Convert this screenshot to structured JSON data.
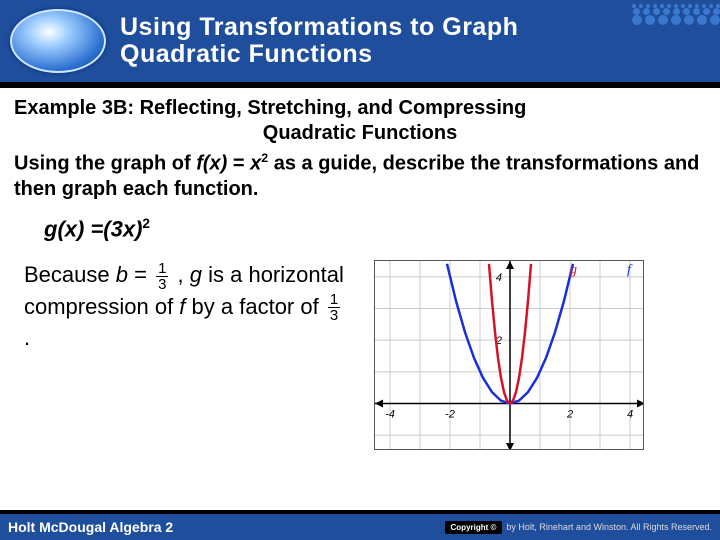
{
  "header": {
    "title_line1": "Using Transformations to Graph",
    "title_line2": "Quadratic Functions"
  },
  "example": {
    "title": "Example 3B: Reflecting, Stretching, and Compressing",
    "subtitle": "Quadratic Functions",
    "instruction_pre": "Using the graph of ",
    "fx": "f(x)",
    "eq": " = ",
    "x": "x",
    "exp": "2",
    "instruction_post": " as a guide, describe the transformations and then graph each function.",
    "gx": "g(x) =(3x)",
    "gx_exp": "2"
  },
  "explanation": {
    "p1a": "Because ",
    "b": "b",
    "eq": " = ",
    "frac1_num": "1",
    "frac1_den": "3",
    "p1b": " , ",
    "g": "g",
    "p1c": " is  a horizontal compression of ",
    "f": "f",
    "p1d": " by a factor of ",
    "frac2_num": "1",
    "frac2_den": "3",
    "p1e": " ."
  },
  "chart": {
    "type": "line",
    "xlim": [
      -4.5,
      4.5
    ],
    "ylim": [
      -1.5,
      4.5
    ],
    "xticks": [
      -4,
      -2,
      2,
      4
    ],
    "yticks": [
      2,
      4
    ],
    "grid_color": "#cccccc",
    "axis_color": "#000000",
    "background": "#ffffff",
    "series": [
      {
        "name": "f",
        "color": "#1a2fd8",
        "width": 2.5,
        "label_pos": [
          3.9,
          4.1
        ],
        "points": [
          [
            -2.1,
            4.41
          ],
          [
            -1.8,
            3.24
          ],
          [
            -1.5,
            2.25
          ],
          [
            -1.2,
            1.44
          ],
          [
            -0.9,
            0.81
          ],
          [
            -0.6,
            0.36
          ],
          [
            -0.3,
            0.09
          ],
          [
            0,
            0
          ],
          [
            0.3,
            0.09
          ],
          [
            0.6,
            0.36
          ],
          [
            0.9,
            0.81
          ],
          [
            1.2,
            1.44
          ],
          [
            1.5,
            2.25
          ],
          [
            1.8,
            3.24
          ],
          [
            2.1,
            4.41
          ]
        ]
      },
      {
        "name": "g",
        "color": "#d2142a",
        "width": 2.5,
        "label_pos": [
          2.0,
          4.1
        ],
        "points": [
          [
            -0.7,
            4.41
          ],
          [
            -0.6,
            3.24
          ],
          [
            -0.5,
            2.25
          ],
          [
            -0.4,
            1.44
          ],
          [
            -0.3,
            0.81
          ],
          [
            -0.2,
            0.36
          ],
          [
            -0.1,
            0.09
          ],
          [
            0,
            0
          ],
          [
            0.1,
            0.09
          ],
          [
            0.2,
            0.36
          ],
          [
            0.3,
            0.81
          ],
          [
            0.4,
            1.44
          ],
          [
            0.5,
            2.25
          ],
          [
            0.6,
            3.24
          ],
          [
            0.7,
            4.41
          ]
        ]
      }
    ]
  },
  "footer": {
    "left": "Holt McDougal Algebra 2",
    "badge": "Copyright ©",
    "right": "by Holt, Rinehart and Winston. All Rights Reserved."
  }
}
